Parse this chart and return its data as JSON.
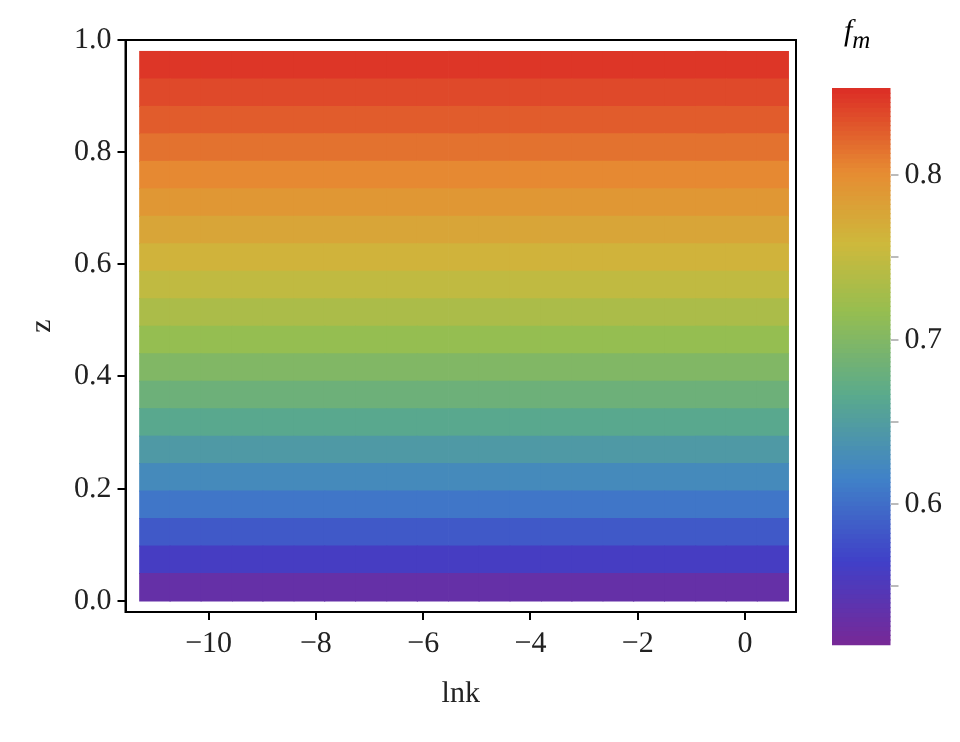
{
  "chart_data": {
    "type": "heatmap",
    "xlabel": "lnk",
    "ylabel": "z",
    "clabel": "f$_{m}$",
    "x": [
      -11.01,
      -10.44,
      -9.86,
      -9.28,
      -8.71,
      -8.13,
      -7.56,
      -6.98,
      -6.4,
      -5.83,
      -5.25,
      -4.68,
      -4.1,
      -3.52,
      -2.95,
      -2.37,
      -1.8,
      -1.22,
      -0.64,
      -0.07,
      0.51
    ],
    "y": [
      0.956,
      0.907,
      0.858,
      0.809,
      0.76,
      0.711,
      0.662,
      0.613,
      0.564,
      0.515,
      0.466,
      0.417,
      0.368,
      0.319,
      0.27,
      0.221,
      0.172,
      0.123,
      0.074,
      0.025
    ],
    "cells": [
      [
        0.848,
        0.848,
        0.848,
        0.848,
        0.848,
        0.848,
        0.848,
        0.848,
        0.848,
        0.848,
        0.848,
        0.848,
        0.848,
        0.848,
        0.848,
        0.848,
        0.848,
        0.848,
        0.848,
        0.848,
        0.848
      ],
      [
        0.838,
        0.838,
        0.838,
        0.838,
        0.838,
        0.838,
        0.838,
        0.838,
        0.838,
        0.838,
        0.838,
        0.838,
        0.838,
        0.838,
        0.838,
        0.838,
        0.838,
        0.838,
        0.838,
        0.838,
        0.838
      ],
      [
        0.828,
        0.828,
        0.828,
        0.828,
        0.828,
        0.828,
        0.828,
        0.828,
        0.828,
        0.828,
        0.828,
        0.828,
        0.828,
        0.828,
        0.828,
        0.828,
        0.828,
        0.828,
        0.828,
        0.828,
        0.828
      ],
      [
        0.816,
        0.816,
        0.816,
        0.816,
        0.816,
        0.816,
        0.816,
        0.816,
        0.816,
        0.816,
        0.816,
        0.816,
        0.816,
        0.816,
        0.816,
        0.816,
        0.816,
        0.816,
        0.816,
        0.816,
        0.816
      ],
      [
        0.804,
        0.804,
        0.804,
        0.804,
        0.804,
        0.804,
        0.804,
        0.804,
        0.804,
        0.804,
        0.804,
        0.804,
        0.804,
        0.804,
        0.804,
        0.804,
        0.804,
        0.804,
        0.804,
        0.804,
        0.804
      ],
      [
        0.792,
        0.792,
        0.792,
        0.792,
        0.792,
        0.792,
        0.792,
        0.792,
        0.792,
        0.792,
        0.792,
        0.792,
        0.792,
        0.792,
        0.792,
        0.792,
        0.792,
        0.792,
        0.792,
        0.792,
        0.792
      ],
      [
        0.778,
        0.778,
        0.778,
        0.778,
        0.778,
        0.778,
        0.778,
        0.778,
        0.778,
        0.778,
        0.778,
        0.778,
        0.778,
        0.778,
        0.778,
        0.778,
        0.778,
        0.778,
        0.778,
        0.778,
        0.778
      ],
      [
        0.764,
        0.764,
        0.764,
        0.764,
        0.764,
        0.764,
        0.764,
        0.764,
        0.764,
        0.764,
        0.764,
        0.764,
        0.764,
        0.764,
        0.764,
        0.764,
        0.764,
        0.764,
        0.764,
        0.764,
        0.764
      ],
      [
        0.749,
        0.749,
        0.749,
        0.749,
        0.749,
        0.749,
        0.749,
        0.749,
        0.749,
        0.749,
        0.749,
        0.749,
        0.749,
        0.749,
        0.749,
        0.749,
        0.749,
        0.749,
        0.749,
        0.749,
        0.749
      ],
      [
        0.733,
        0.733,
        0.733,
        0.733,
        0.733,
        0.733,
        0.733,
        0.733,
        0.733,
        0.733,
        0.733,
        0.733,
        0.733,
        0.733,
        0.733,
        0.733,
        0.733,
        0.733,
        0.733,
        0.733,
        0.733
      ],
      [
        0.717,
        0.717,
        0.717,
        0.717,
        0.717,
        0.717,
        0.717,
        0.717,
        0.717,
        0.717,
        0.717,
        0.717,
        0.717,
        0.717,
        0.717,
        0.717,
        0.717,
        0.717,
        0.717,
        0.717,
        0.717
      ],
      [
        0.7,
        0.7,
        0.7,
        0.7,
        0.7,
        0.7,
        0.7,
        0.7,
        0.7,
        0.7,
        0.7,
        0.7,
        0.7,
        0.7,
        0.7,
        0.7,
        0.7,
        0.7,
        0.7,
        0.7,
        0.7
      ],
      [
        0.683,
        0.683,
        0.683,
        0.683,
        0.683,
        0.683,
        0.683,
        0.683,
        0.683,
        0.683,
        0.683,
        0.683,
        0.683,
        0.683,
        0.683,
        0.683,
        0.683,
        0.683,
        0.683,
        0.683,
        0.683
      ],
      [
        0.665,
        0.665,
        0.665,
        0.665,
        0.665,
        0.665,
        0.665,
        0.665,
        0.665,
        0.665,
        0.665,
        0.665,
        0.665,
        0.665,
        0.665,
        0.665,
        0.665,
        0.665,
        0.665,
        0.665,
        0.665
      ],
      [
        0.646,
        0.646,
        0.646,
        0.646,
        0.646,
        0.646,
        0.646,
        0.646,
        0.646,
        0.646,
        0.646,
        0.646,
        0.646,
        0.646,
        0.646,
        0.646,
        0.646,
        0.646,
        0.646,
        0.646,
        0.646
      ],
      [
        0.627,
        0.627,
        0.627,
        0.627,
        0.627,
        0.627,
        0.627,
        0.627,
        0.627,
        0.627,
        0.627,
        0.627,
        0.627,
        0.627,
        0.627,
        0.627,
        0.627,
        0.627,
        0.627,
        0.627,
        0.627
      ],
      [
        0.607,
        0.607,
        0.607,
        0.607,
        0.607,
        0.607,
        0.607,
        0.607,
        0.607,
        0.607,
        0.607,
        0.607,
        0.607,
        0.607,
        0.607,
        0.607,
        0.607,
        0.607,
        0.607,
        0.607,
        0.607
      ],
      [
        0.585,
        0.585,
        0.585,
        0.585,
        0.585,
        0.585,
        0.585,
        0.585,
        0.585,
        0.585,
        0.585,
        0.585,
        0.585,
        0.585,
        0.585,
        0.585,
        0.585,
        0.585,
        0.585,
        0.585,
        0.585
      ],
      [
        0.56,
        0.56,
        0.56,
        0.56,
        0.56,
        0.56,
        0.56,
        0.56,
        0.56,
        0.56,
        0.56,
        0.56,
        0.56,
        0.56,
        0.56,
        0.56,
        0.56,
        0.56,
        0.56,
        0.56,
        0.56
      ],
      [
        0.532,
        0.532,
        0.532,
        0.532,
        0.532,
        0.532,
        0.532,
        0.532,
        0.532,
        0.532,
        0.532,
        0.532,
        0.532,
        0.532,
        0.532,
        0.532,
        0.532,
        0.532,
        0.532,
        0.532,
        0.532
      ]
    ],
    "xlim": [
      -11.55,
      0.95
    ],
    "xticks": [
      {
        "value": -10,
        "label": "−10"
      },
      {
        "value": -8,
        "label": "−8"
      },
      {
        "value": -6,
        "label": "−6"
      },
      {
        "value": -4,
        "label": "−4"
      },
      {
        "value": -2,
        "label": "−2"
      },
      0
    ],
    "ylim": [
      -0.02,
      1.0
    ],
    "yticks": [
      {
        "value": 0,
        "label": "0.0"
      },
      {
        "value": 0.2,
        "label": "0.2"
      },
      {
        "value": 0.4,
        "label": "0.4"
      },
      {
        "value": 0.6,
        "label": "0.6"
      },
      {
        "value": 0.8,
        "label": "0.8"
      },
      {
        "value": 1,
        "label": "1.0"
      }
    ],
    "clim": [
      0.515,
      0.853
    ],
    "cticks": [
      {
        "value": 0.55,
        "label": null
      },
      0.6,
      {
        "value": 0.65,
        "label": null
      },
      0.7,
      {
        "value": 0.75,
        "label": null
      },
      0.8
    ]
  }
}
